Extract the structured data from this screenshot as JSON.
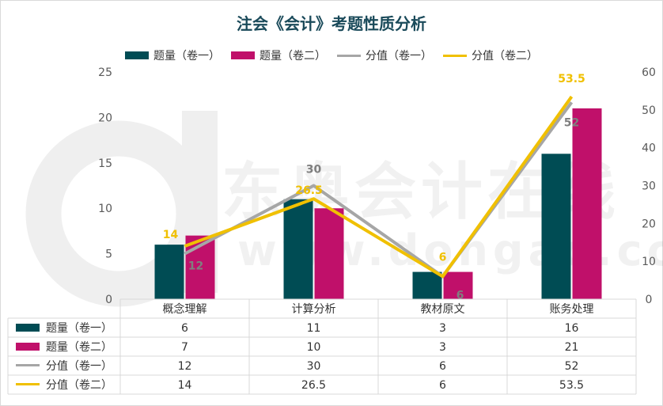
{
  "chart_data": {
    "type": "bar",
    "title": "注会《会计》考题性质分析",
    "categories": [
      "概念理解",
      "计算分析",
      "教材原文",
      "账务处理"
    ],
    "series": [
      {
        "name": "题量（卷一）",
        "kind": "bar",
        "axis": "left",
        "color": "#004c54",
        "values": [
          6,
          11,
          3,
          16
        ]
      },
      {
        "name": "题量（卷二）",
        "kind": "bar",
        "axis": "left",
        "color": "#c0106a",
        "values": [
          7,
          10,
          3,
          21
        ]
      },
      {
        "name": "分值（卷一）",
        "kind": "line",
        "axis": "right",
        "color": "#a6a6a6",
        "values": [
          12,
          30,
          6,
          52
        ]
      },
      {
        "name": "分值（卷二）",
        "kind": "line",
        "axis": "right",
        "color": "#f0c000",
        "values": [
          14,
          26.5,
          6,
          53.5
        ]
      }
    ],
    "table_values": [
      [
        "6",
        "11",
        "3",
        "16"
      ],
      [
        "7",
        "10",
        "3",
        "21"
      ],
      [
        "12",
        "30",
        "6",
        "52"
      ],
      [
        "14",
        "26.5",
        "6",
        "53.5"
      ]
    ],
    "line_labels": {
      "s2": [
        "12",
        "30",
        "6",
        "52"
      ],
      "s3": [
        "14",
        "26.5",
        "6",
        "53.5"
      ]
    },
    "y_left": {
      "min": 0,
      "max": 25,
      "ticks": [
        "0",
        "5",
        "10",
        "15",
        "20",
        "25"
      ]
    },
    "y_right": {
      "min": 0,
      "max": 60,
      "ticks": [
        "0",
        "10",
        "20",
        "30",
        "40",
        "50",
        "60"
      ]
    },
    "legend_position": "top",
    "data_table": true
  },
  "watermark": {
    "brand": "东奥会计在线",
    "url": "www.dongao.com"
  }
}
